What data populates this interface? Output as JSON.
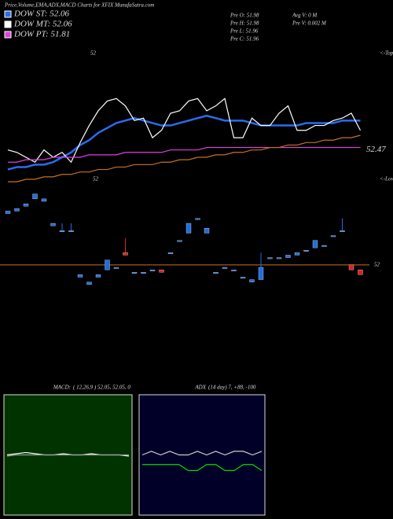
{
  "chart_data": [
    {
      "type": "candlestick",
      "title": "Price,Volume,EMA,ADX,MACD Charts for XFIX MunafaSutra.com",
      "info": [
        "Pre  O: 51.98",
        "Avg V: 0  M",
        "Pre  H: 51.98",
        "Pre  V: 0.002  M",
        "Pre  L: 51.96",
        "Pre  C: 51.96"
      ],
      "annotations": [
        "<-Tops",
        "<-Lows",
        "52",
        "52"
      ],
      "ylim": [
        51.54,
        52.89
      ],
      "ref_line": 52,
      "price_label": 52.47,
      "up_color": "#1e6fe0",
      "down_color": "#e02020",
      "open": [
        52.21,
        52.22,
        52.24,
        52.27,
        52.26,
        52.16,
        52.14,
        52.14,
        51.95,
        51.92,
        51.95,
        51.98,
        51.99,
        52.05,
        51.97,
        51.97,
        51.98,
        51.98,
        52.05,
        52.1,
        52.13,
        52.19,
        52.13,
        51.97,
        51.99,
        51.98,
        51.95,
        51.93,
        51.94,
        52.03,
        52.03,
        52.03,
        52.04,
        52.06,
        52.07,
        52.08,
        52.12,
        52.14,
        52.0,
        51.98
      ],
      "close": [
        52.22,
        52.23,
        52.25,
        52.29,
        52.27,
        52.17,
        52.14,
        52.14,
        51.96,
        51.93,
        51.96,
        52.02,
        51.99,
        52.04,
        51.97,
        51.97,
        51.98,
        51.97,
        52.05,
        52.1,
        52.17,
        52.19,
        52.15,
        51.97,
        51.99,
        51.98,
        51.95,
        51.94,
        51.99,
        52.03,
        52.03,
        52.04,
        52.05,
        52.06,
        52.1,
        52.08,
        52.12,
        52.14,
        51.98,
        51.96
      ],
      "high": [
        52.22,
        52.23,
        52.25,
        52.29,
        52.27,
        52.17,
        52.17,
        52.17,
        51.96,
        51.93,
        51.96,
        52.02,
        51.99,
        52.11,
        51.97,
        51.97,
        51.98,
        51.98,
        52.05,
        52.1,
        52.17,
        52.19,
        52.15,
        51.97,
        51.99,
        51.98,
        51.95,
        51.94,
        52.05,
        52.03,
        52.03,
        52.04,
        52.05,
        52.06,
        52.1,
        52.08,
        52.12,
        52.19,
        52.0,
        51.98
      ],
      "low": [
        52.21,
        52.22,
        52.24,
        52.27,
        52.26,
        52.16,
        52.14,
        52.14,
        51.95,
        51.92,
        51.95,
        51.98,
        51.99,
        52.04,
        51.97,
        51.97,
        51.98,
        51.97,
        52.05,
        52.1,
        52.13,
        52.19,
        52.13,
        51.97,
        51.99,
        51.98,
        51.95,
        51.93,
        51.94,
        52.03,
        52.03,
        52.03,
        52.04,
        52.06,
        52.07,
        52.08,
        52.12,
        52.14,
        51.98,
        51.96
      ],
      "series": [
        {
          "name": "DOW ST: 52.06",
          "color": "#2a6cf0",
          "values": [
            52.39,
            52.4,
            52.4,
            52.41,
            52.41,
            52.42,
            52.44,
            52.46,
            52.49,
            52.51,
            52.54,
            52.56,
            52.58,
            52.59,
            52.6,
            52.59,
            52.58,
            52.57,
            52.57,
            52.58,
            52.59,
            52.6,
            52.61,
            52.6,
            52.59,
            52.59,
            52.59,
            52.58,
            52.57,
            52.57,
            52.57,
            52.57,
            52.57,
            52.58,
            52.58,
            52.58,
            52.58,
            52.59,
            52.59,
            52.59
          ]
        },
        {
          "name": "DOW MT: 52.06",
          "color": "#ffffff",
          "values": [
            52.47,
            52.46,
            52.44,
            52.42,
            52.47,
            52.44,
            52.46,
            52.42,
            52.5,
            52.57,
            52.63,
            52.67,
            52.68,
            52.65,
            52.59,
            52.6,
            52.52,
            52.55,
            52.62,
            52.63,
            52.67,
            52.68,
            52.63,
            52.65,
            52.68,
            52.52,
            52.52,
            52.6,
            52.57,
            52.57,
            52.62,
            52.65,
            52.55,
            52.55,
            52.57,
            52.57,
            52.59,
            52.6,
            52.62,
            52.55
          ]
        },
        {
          "name": "DOW PT: 51.81",
          "color": "#e040e0",
          "values": [
            52.42,
            52.42,
            52.43,
            52.43,
            52.43,
            52.44,
            52.44,
            52.44,
            52.44,
            52.45,
            52.45,
            52.45,
            52.45,
            52.46,
            52.46,
            52.46,
            52.46,
            52.46,
            52.47,
            52.47,
            52.47,
            52.47,
            52.48,
            52.48,
            52.48,
            52.48,
            52.48,
            52.48,
            52.48,
            52.48,
            52.48,
            52.48,
            52.48,
            52.48,
            52.48,
            52.48,
            52.48,
            52.48,
            52.48,
            52.48
          ]
        },
        {
          "color": "#c87020",
          "values": [
            52.34,
            52.34,
            52.35,
            52.35,
            52.36,
            52.36,
            52.37,
            52.37,
            52.38,
            52.38,
            52.39,
            52.39,
            52.4,
            52.4,
            52.41,
            52.41,
            52.41,
            52.42,
            52.42,
            52.43,
            52.43,
            52.44,
            52.44,
            52.45,
            52.45,
            52.46,
            52.46,
            52.47,
            52.47,
            52.48,
            52.48,
            52.49,
            52.49,
            52.5,
            52.5,
            52.51,
            52.51,
            52.52,
            52.52,
            52.53
          ]
        }
      ]
    },
    {
      "type": "line",
      "title": "MACD:",
      "subtitle": "( 12,26,9 ) 52.05, 52.05, 0",
      "background": "#003300",
      "ylim": [
        51.55,
        52.55
      ],
      "series": [
        {
          "color": "#ffffff",
          "values": [
            52.05,
            52.06,
            52.07,
            52.06,
            52.05,
            52.05,
            52.06,
            52.05,
            52.05,
            52.06,
            52.05,
            52.05,
            52.05,
            52.04
          ]
        },
        {
          "color": "#999999",
          "values": [
            52.04,
            52.05,
            52.05,
            52.05,
            52.05,
            52.05,
            52.05,
            52.05,
            52.05,
            52.05,
            52.05,
            52.05,
            52.05,
            52.05
          ]
        }
      ]
    },
    {
      "type": "line",
      "title": "ADX",
      "subtitle": "(14  day) 7, +88, -100",
      "background": "#000028",
      "ylim": [
        0,
        100
      ],
      "series": [
        {
          "color": "#cccccc",
          "values": [
            50,
            53,
            50,
            53,
            50,
            50,
            53,
            50,
            53,
            50,
            53,
            53,
            50,
            53
          ]
        },
        {
          "color": "#00dd00",
          "values": [
            42,
            42,
            42,
            42,
            42,
            37,
            37,
            42,
            42,
            37,
            37,
            42,
            42,
            37
          ]
        }
      ]
    }
  ]
}
